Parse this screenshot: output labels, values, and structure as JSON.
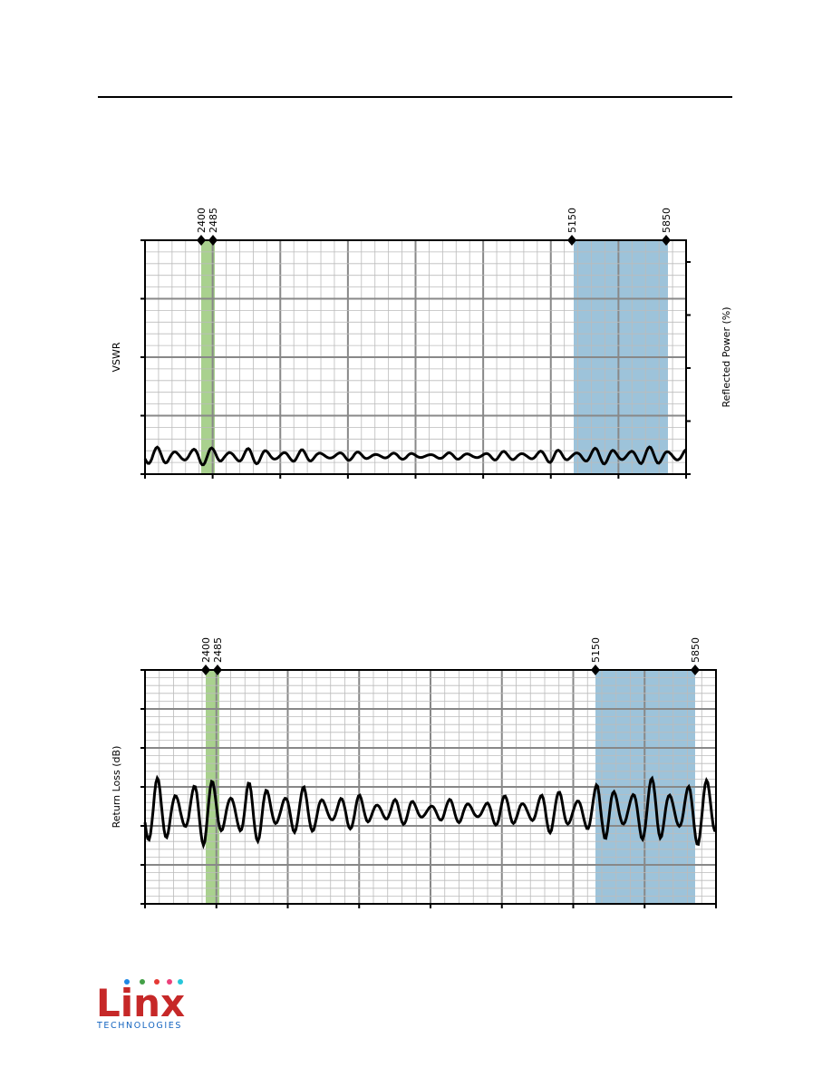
{
  "charts": [
    {
      "y_label": "VSWR",
      "y2_label": "Reflected Power (%)",
      "markers": [
        "2400",
        "2485",
        "5150",
        "5850"
      ]
    },
    {
      "y_label": "Return Loss (dB)",
      "markers": [
        "2400",
        "2485",
        "5150",
        "5850"
      ]
    }
  ],
  "logo": {
    "name": "Linx",
    "tagline": "TECHNOLOGIES"
  }
}
